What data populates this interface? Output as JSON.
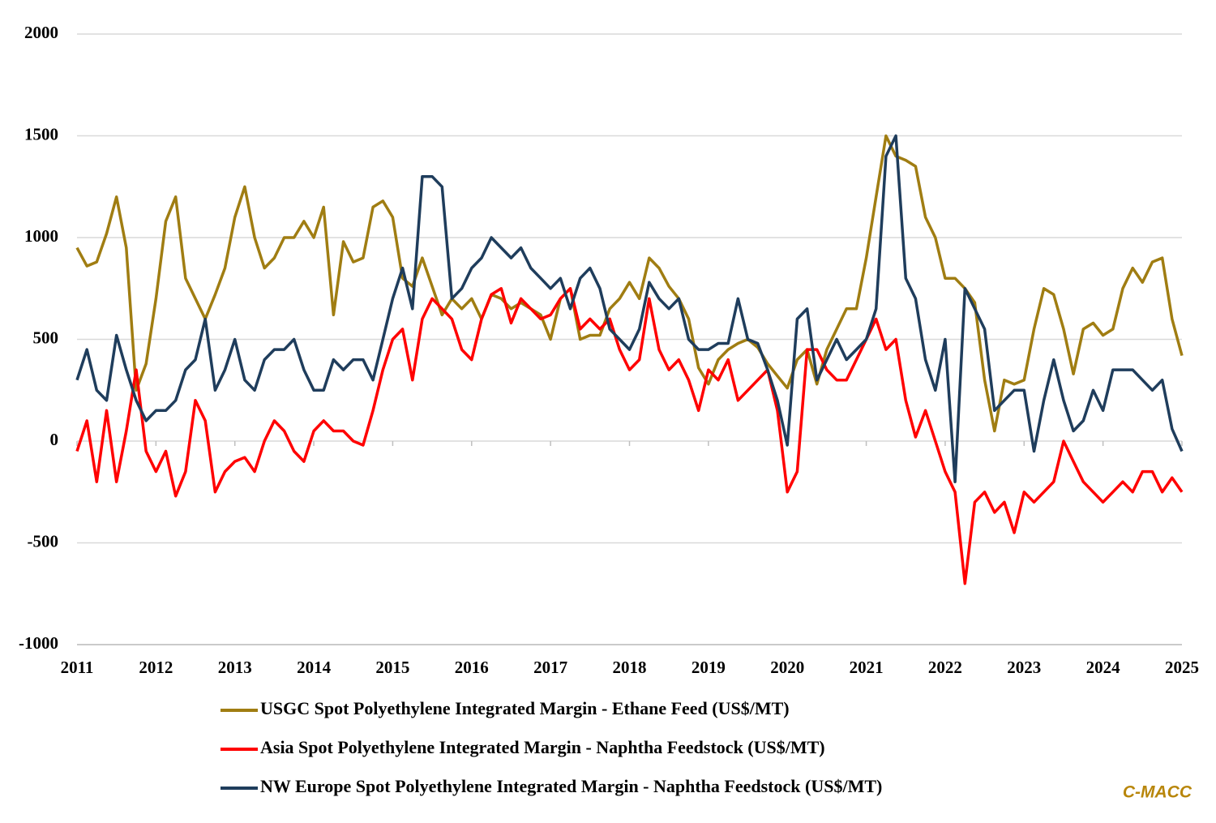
{
  "chart_data": {
    "type": "line",
    "x": [
      2011,
      2011.125,
      2011.25,
      2011.375,
      2011.5,
      2011.625,
      2011.75,
      2011.875,
      2012,
      2012.125,
      2012.25,
      2012.375,
      2012.5,
      2012.625,
      2012.75,
      2012.875,
      2013,
      2013.125,
      2013.25,
      2013.375,
      2013.5,
      2013.625,
      2013.75,
      2013.875,
      2014,
      2014.125,
      2014.25,
      2014.375,
      2014.5,
      2014.625,
      2014.75,
      2014.875,
      2015,
      2015.125,
      2015.25,
      2015.375,
      2015.5,
      2015.625,
      2015.75,
      2015.875,
      2016,
      2016.125,
      2016.25,
      2016.375,
      2016.5,
      2016.625,
      2016.75,
      2016.875,
      2017,
      2017.125,
      2017.25,
      2017.375,
      2017.5,
      2017.625,
      2017.75,
      2017.875,
      2018,
      2018.125,
      2018.25,
      2018.375,
      2018.5,
      2018.625,
      2018.75,
      2018.875,
      2019,
      2019.125,
      2019.25,
      2019.375,
      2019.5,
      2019.625,
      2019.75,
      2019.875,
      2020,
      2020.125,
      2020.25,
      2020.375,
      2020.5,
      2020.625,
      2020.75,
      2020.875,
      2021,
      2021.125,
      2021.25,
      2021.375,
      2021.5,
      2021.625,
      2021.75,
      2021.875,
      2022,
      2022.125,
      2022.25,
      2022.375,
      2022.5,
      2022.625,
      2022.75,
      2022.875,
      2023,
      2023.125,
      2023.25,
      2023.375,
      2023.5,
      2023.625,
      2023.75,
      2023.875,
      2024,
      2024.125,
      2024.25,
      2024.375,
      2024.5,
      2024.625,
      2024.75,
      2024.875,
      2025
    ],
    "series": [
      {
        "name": "USGC Spot Polyethylene Integrated Margin - Ethane Feed (US$/MT)",
        "color": "#a07d12",
        "values": [
          950,
          860,
          880,
          1020,
          1200,
          950,
          250,
          380,
          700,
          1080,
          1200,
          800,
          700,
          600,
          720,
          850,
          1100,
          1250,
          1000,
          850,
          900,
          1000,
          1000,
          1080,
          1000,
          1150,
          620,
          980,
          880,
          900,
          1150,
          1180,
          1100,
          800,
          760,
          900,
          760,
          620,
          700,
          650,
          700,
          600,
          720,
          700,
          650,
          680,
          650,
          620,
          500,
          700,
          750,
          500,
          520,
          520,
          650,
          700,
          780,
          700,
          900,
          850,
          760,
          700,
          600,
          360,
          280,
          400,
          450,
          480,
          500,
          460,
          380,
          320,
          260,
          400,
          450,
          280,
          450,
          550,
          650,
          650,
          900,
          1200,
          1500,
          1400,
          1380,
          1350,
          1100,
          1000,
          800,
          800,
          750,
          680,
          300,
          50,
          300,
          280,
          300,
          550,
          750,
          720,
          550,
          330,
          550,
          580,
          520,
          550,
          750,
          850,
          780,
          880,
          900,
          600,
          420
        ]
      },
      {
        "name": "Asia Spot Polyethylene Integrated Margin - Naphtha Feedstock (US$/MT)",
        "color": "#ff0000",
        "values": [
          -50,
          100,
          -200,
          150,
          -200,
          50,
          350,
          -50,
          -150,
          -50,
          -270,
          -150,
          200,
          100,
          -250,
          -150,
          -100,
          -80,
          -150,
          0,
          100,
          50,
          -50,
          -100,
          50,
          100,
          50,
          50,
          0,
          -20,
          150,
          350,
          500,
          550,
          300,
          600,
          700,
          650,
          600,
          450,
          400,
          600,
          720,
          750,
          580,
          700,
          650,
          600,
          620,
          700,
          750,
          550,
          600,
          550,
          600,
          450,
          350,
          400,
          700,
          450,
          350,
          400,
          300,
          150,
          350,
          300,
          400,
          200,
          250,
          300,
          350,
          150,
          -250,
          -150,
          450,
          450,
          350,
          300,
          300,
          400,
          500,
          600,
          450,
          500,
          200,
          20,
          150,
          0,
          -150,
          -250,
          -700,
          -300,
          -250,
          -350,
          -300,
          -450,
          -250,
          -300,
          -250,
          -200,
          0,
          -100,
          -200,
          -250,
          -300,
          -250,
          -200,
          -250,
          -150,
          -150,
          -250,
          -180,
          -250
        ]
      },
      {
        "name": "NW Europe Spot Polyethylene Integrated Margin - Naphtha Feedstock (US$/MT)",
        "color": "#1f3d5c",
        "values": [
          300,
          450,
          250,
          200,
          520,
          350,
          200,
          100,
          150,
          150,
          200,
          350,
          400,
          600,
          250,
          350,
          500,
          300,
          250,
          400,
          450,
          450,
          500,
          350,
          250,
          250,
          400,
          350,
          400,
          400,
          300,
          500,
          700,
          850,
          650,
          1300,
          1300,
          1250,
          700,
          750,
          850,
          900,
          1000,
          950,
          900,
          950,
          850,
          800,
          750,
          800,
          650,
          800,
          850,
          750,
          550,
          500,
          450,
          550,
          780,
          700,
          650,
          700,
          500,
          450,
          450,
          480,
          480,
          700,
          500,
          480,
          350,
          200,
          -20,
          600,
          650,
          300,
          400,
          500,
          400,
          450,
          500,
          650,
          1400,
          1500,
          800,
          700,
          400,
          250,
          500,
          -200,
          750,
          650,
          550,
          150,
          200,
          250,
          250,
          -50,
          200,
          400,
          200,
          50,
          100,
          250,
          150,
          350,
          350,
          350,
          300,
          250,
          300,
          60,
          -50
        ]
      }
    ],
    "xlim": [
      2011,
      2025
    ],
    "xticks": [
      2011,
      2012,
      2013,
      2014,
      2015,
      2016,
      2017,
      2018,
      2019,
      2020,
      2021,
      2022,
      2023,
      2024,
      2025
    ],
    "ylim": [
      -1000,
      2000
    ],
    "yticks": [
      -1000,
      -500,
      0,
      500,
      1000,
      1500,
      2000
    ],
    "grid": true,
    "annotations": [
      {
        "text": "C-MACC"
      }
    ]
  }
}
